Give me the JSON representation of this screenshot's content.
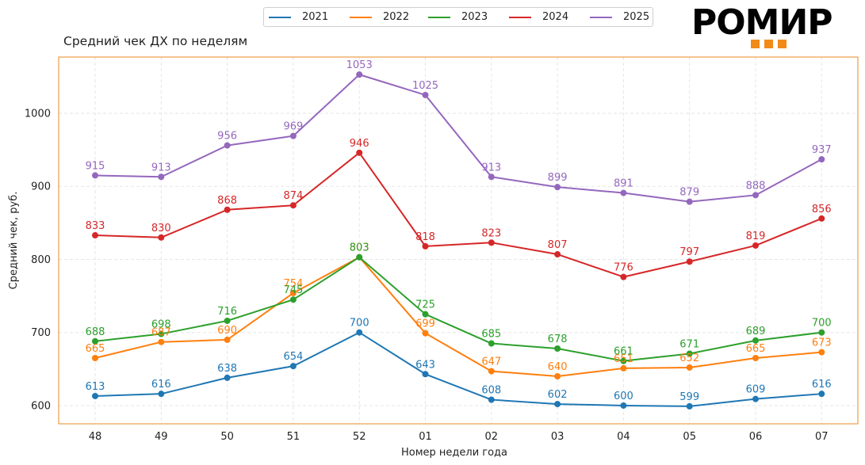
{
  "chart_data": {
    "type": "line",
    "title": "Средний чек ДХ по неделям",
    "xlabel": "Номер недели года",
    "ylabel": "Средний чек, руб.",
    "categories": [
      "48",
      "49",
      "50",
      "51",
      "52",
      "01",
      "02",
      "03",
      "04",
      "05",
      "06",
      "07"
    ],
    "ylim": [
      575,
      1077
    ],
    "yticks": [
      600,
      700,
      800,
      900,
      1000
    ],
    "grid": true,
    "legend_position": "top-center",
    "series": [
      {
        "name": "2021",
        "color": "#1f77b4",
        "values": [
          613,
          616,
          638,
          654,
          700,
          643,
          608,
          602,
          600,
          599,
          609,
          616
        ]
      },
      {
        "name": "2022",
        "color": "#ff7f0e",
        "values": [
          665,
          687,
          690,
          754,
          803,
          699,
          647,
          640,
          651,
          652,
          665,
          673
        ]
      },
      {
        "name": "2023",
        "color": "#2ca02c",
        "values": [
          688,
          698,
          716,
          745,
          803,
          725,
          685,
          678,
          661,
          671,
          689,
          700
        ]
      },
      {
        "name": "2024",
        "color": "#d62728",
        "values": [
          833,
          830,
          868,
          874,
          946,
          818,
          823,
          807,
          776,
          797,
          819,
          856
        ]
      },
      {
        "name": "2025",
        "color": "#9467bd",
        "values": [
          915,
          913,
          956,
          969,
          1053,
          1025,
          913,
          899,
          891,
          879,
          888,
          937
        ]
      }
    ]
  },
  "logo": {
    "text": "РОМИР",
    "accent_color": "#f28a17"
  },
  "frame_color": "#e8891f"
}
